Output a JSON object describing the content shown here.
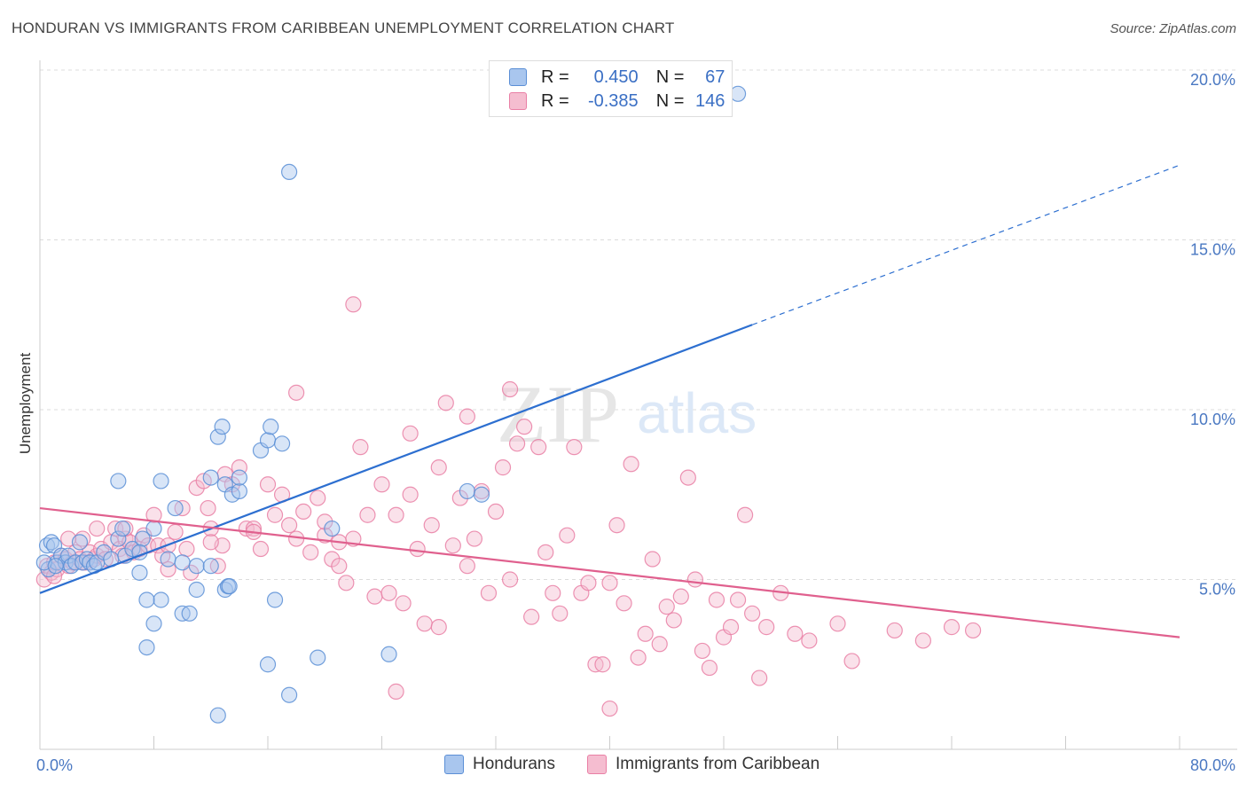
{
  "title": "HONDURAN VS IMMIGRANTS FROM CARIBBEAN UNEMPLOYMENT CORRELATION CHART",
  "source": "Source: ZipAtlas.com",
  "watermark": {
    "zip": "ZIP",
    "atlas": "atlas"
  },
  "colors": {
    "blue": "#5b8fd6",
    "blue_fill": "#a9c6ee",
    "blue_line": "#2d6fd0",
    "pink": "#e97fa5",
    "pink_fill": "#f5bdd0",
    "pink_line": "#e0608e",
    "tick": "#4a78c2",
    "grid": "#dcdcdc"
  },
  "legend": {
    "rows": [
      {
        "r_label": "R =",
        "r_value": "0.450",
        "n_label": "N =",
        "n_value": "67",
        "color": "blue"
      },
      {
        "r_label": "R =",
        "r_value": "-0.385",
        "n_label": "N =",
        "n_value": "146",
        "color": "pink"
      }
    ]
  },
  "bottom_legend": {
    "series1": "Hondurans",
    "series2": "Immigrants from Caribbean"
  },
  "chart_data": {
    "type": "scatter",
    "ylabel": "Unemployment",
    "xlim": [
      0,
      80
    ],
    "ylim": [
      0,
      20
    ],
    "x_tick_labels": [
      {
        "value": 0,
        "label": "0.0%"
      },
      {
        "value": 80,
        "label": "80.0%"
      }
    ],
    "y_tick_labels": [
      {
        "value": 5,
        "label": "5.0%"
      },
      {
        "value": 10,
        "label": "10.0%"
      },
      {
        "value": 15,
        "label": "15.0%"
      },
      {
        "value": 20,
        "label": "20.0%"
      }
    ],
    "series": [
      {
        "name": "Hondurans",
        "color": "blue",
        "trend": {
          "x0": 0,
          "y0": 4.6,
          "x1": 50,
          "y1": 12.5,
          "dash_to_x": 80,
          "dash_to_y": 17.2
        },
        "points": [
          [
            0.5,
            6.0
          ],
          [
            0.6,
            5.3
          ],
          [
            0.8,
            6.1
          ],
          [
            1.0,
            6.0
          ],
          [
            1.2,
            5.5
          ],
          [
            1.5,
            5.7
          ],
          [
            1.8,
            5.5
          ],
          [
            2.0,
            5.7
          ],
          [
            2.2,
            5.4
          ],
          [
            2.5,
            5.5
          ],
          [
            2.8,
            6.1
          ],
          [
            3.0,
            5.5
          ],
          [
            3.3,
            5.6
          ],
          [
            3.5,
            5.5
          ],
          [
            3.8,
            5.4
          ],
          [
            4.0,
            5.5
          ],
          [
            4.5,
            5.8
          ],
          [
            5.0,
            5.6
          ],
          [
            5.5,
            6.2
          ],
          [
            5.8,
            6.5
          ],
          [
            6.0,
            5.7
          ],
          [
            6.5,
            5.9
          ],
          [
            7.0,
            5.2
          ],
          [
            7.2,
            6.2
          ],
          [
            7.0,
            5.8
          ],
          [
            5.5,
            7.9
          ],
          [
            8.5,
            7.9
          ],
          [
            8.0,
            6.5
          ],
          [
            8.5,
            4.4
          ],
          [
            7.5,
            4.4
          ],
          [
            8.0,
            3.7
          ],
          [
            7.5,
            3.0
          ],
          [
            9.0,
            5.6
          ],
          [
            9.5,
            7.1
          ],
          [
            10.0,
            5.5
          ],
          [
            10.0,
            4.0
          ],
          [
            10.5,
            4.0
          ],
          [
            11.0,
            5.4
          ],
          [
            11.0,
            4.7
          ],
          [
            12.0,
            5.4
          ],
          [
            12.0,
            8.0
          ],
          [
            12.5,
            9.2
          ],
          [
            12.5,
            1.0
          ],
          [
            12.8,
            9.5
          ],
          [
            13.0,
            7.8
          ],
          [
            13.5,
            7.5
          ],
          [
            13.0,
            4.7
          ],
          [
            13.2,
            4.8
          ],
          [
            13.3,
            4.8
          ],
          [
            14.0,
            7.6
          ],
          [
            14.0,
            8.0
          ],
          [
            15.5,
            8.8
          ],
          [
            16.0,
            9.1
          ],
          [
            16.2,
            9.5
          ],
          [
            17.0,
            9.0
          ],
          [
            16.0,
            2.5
          ],
          [
            16.5,
            4.4
          ],
          [
            17.5,
            1.6
          ],
          [
            17.5,
            17.0
          ],
          [
            19.5,
            2.7
          ],
          [
            20.5,
            6.5
          ],
          [
            24.5,
            2.8
          ],
          [
            30.0,
            7.6
          ],
          [
            31.0,
            7.5
          ],
          [
            49.0,
            19.3
          ],
          [
            0.3,
            5.5
          ],
          [
            1.1,
            5.4
          ]
        ]
      },
      {
        "name": "Immigrants from Caribbean",
        "color": "pink",
        "trend": {
          "x0": 0,
          "y0": 7.1,
          "x1": 80,
          "y1": 3.3
        },
        "points": [
          [
            0.3,
            5.0
          ],
          [
            0.5,
            5.4
          ],
          [
            0.8,
            5.2
          ],
          [
            1.0,
            5.5
          ],
          [
            1.2,
            5.3
          ],
          [
            1.5,
            5.7
          ],
          [
            1.8,
            5.6
          ],
          [
            2.0,
            5.4
          ],
          [
            2.3,
            5.5
          ],
          [
            2.5,
            5.8
          ],
          [
            2.8,
            5.6
          ],
          [
            3.0,
            6.2
          ],
          [
            3.2,
            5.5
          ],
          [
            3.5,
            5.8
          ],
          [
            3.8,
            5.6
          ],
          [
            4.0,
            5.7
          ],
          [
            4.3,
            5.9
          ],
          [
            4.6,
            5.6
          ],
          [
            5.0,
            6.1
          ],
          [
            5.3,
            6.5
          ],
          [
            5.6,
            5.9
          ],
          [
            5.8,
            5.7
          ],
          [
            6.0,
            6.2
          ],
          [
            6.3,
            6.1
          ],
          [
            6.6,
            5.8
          ],
          [
            7.0,
            5.9
          ],
          [
            7.3,
            6.3
          ],
          [
            7.6,
            6.0
          ],
          [
            8.0,
            6.9
          ],
          [
            8.3,
            6.0
          ],
          [
            8.6,
            5.7
          ],
          [
            9.0,
            5.3
          ],
          [
            9.5,
            6.4
          ],
          [
            10.0,
            7.1
          ],
          [
            10.3,
            5.9
          ],
          [
            10.6,
            5.2
          ],
          [
            11.0,
            7.7
          ],
          [
            11.5,
            7.9
          ],
          [
            11.8,
            7.1
          ],
          [
            12.0,
            6.5
          ],
          [
            12.5,
            5.4
          ],
          [
            12.8,
            6.0
          ],
          [
            13.0,
            8.1
          ],
          [
            13.5,
            7.8
          ],
          [
            14.0,
            8.3
          ],
          [
            14.5,
            6.5
          ],
          [
            15.0,
            6.5
          ],
          [
            15.5,
            5.9
          ],
          [
            16.0,
            7.8
          ],
          [
            16.5,
            6.9
          ],
          [
            17.0,
            7.5
          ],
          [
            17.5,
            6.6
          ],
          [
            18.0,
            6.2
          ],
          [
            18.5,
            7.0
          ],
          [
            19.0,
            5.8
          ],
          [
            19.5,
            7.4
          ],
          [
            20.0,
            6.3
          ],
          [
            20.5,
            5.6
          ],
          [
            21.0,
            6.1
          ],
          [
            21.5,
            4.9
          ],
          [
            22.0,
            6.2
          ],
          [
            22.5,
            8.9
          ],
          [
            23.0,
            6.9
          ],
          [
            23.5,
            4.5
          ],
          [
            24.0,
            7.8
          ],
          [
            24.5,
            4.6
          ],
          [
            25.0,
            6.9
          ],
          [
            25.5,
            4.3
          ],
          [
            26.0,
            7.5
          ],
          [
            26.5,
            5.9
          ],
          [
            27.0,
            3.7
          ],
          [
            27.5,
            6.6
          ],
          [
            28.0,
            8.3
          ],
          [
            28.5,
            10.2
          ],
          [
            29.0,
            6.0
          ],
          [
            29.5,
            7.4
          ],
          [
            30.0,
            9.8
          ],
          [
            30.5,
            6.2
          ],
          [
            31.0,
            7.6
          ],
          [
            31.5,
            4.6
          ],
          [
            32.0,
            7.0
          ],
          [
            32.5,
            8.3
          ],
          [
            33.0,
            5.0
          ],
          [
            33.5,
            9.0
          ],
          [
            34.0,
            9.5
          ],
          [
            34.5,
            3.9
          ],
          [
            35.0,
            8.9
          ],
          [
            35.5,
            5.8
          ],
          [
            36.0,
            4.6
          ],
          [
            36.5,
            4.0
          ],
          [
            37.0,
            6.3
          ],
          [
            37.5,
            8.9
          ],
          [
            38.0,
            4.6
          ],
          [
            38.5,
            4.9
          ],
          [
            39.0,
            2.5
          ],
          [
            39.5,
            2.5
          ],
          [
            40.0,
            4.9
          ],
          [
            40.5,
            6.6
          ],
          [
            41.0,
            4.3
          ],
          [
            41.5,
            8.4
          ],
          [
            42.0,
            2.7
          ],
          [
            42.5,
            3.4
          ],
          [
            43.0,
            5.6
          ],
          [
            43.5,
            3.1
          ],
          [
            44.0,
            4.2
          ],
          [
            44.5,
            3.8
          ],
          [
            45.0,
            4.5
          ],
          [
            45.5,
            8.0
          ],
          [
            46.0,
            5.0
          ],
          [
            46.5,
            2.9
          ],
          [
            47.0,
            2.4
          ],
          [
            47.5,
            4.4
          ],
          [
            48.0,
            3.3
          ],
          [
            48.5,
            3.6
          ],
          [
            49.0,
            4.4
          ],
          [
            49.5,
            6.9
          ],
          [
            50.0,
            4.0
          ],
          [
            50.5,
            2.1
          ],
          [
            51.0,
            3.6
          ],
          [
            52.0,
            4.6
          ],
          [
            53.0,
            3.4
          ],
          [
            54.0,
            3.2
          ],
          [
            56.0,
            3.7
          ],
          [
            57.0,
            2.6
          ],
          [
            60.0,
            3.5
          ],
          [
            62.0,
            3.2
          ],
          [
            64.0,
            3.6
          ],
          [
            65.5,
            3.5
          ],
          [
            18.0,
            10.5
          ],
          [
            22.0,
            13.1
          ],
          [
            33.0,
            10.6
          ],
          [
            28.0,
            3.6
          ],
          [
            25.0,
            1.7
          ],
          [
            40.0,
            1.2
          ],
          [
            21.0,
            5.4
          ],
          [
            20.0,
            6.7
          ],
          [
            15.0,
            6.4
          ],
          [
            12.0,
            6.1
          ],
          [
            9.0,
            6.0
          ],
          [
            6.0,
            6.5
          ],
          [
            4.0,
            6.5
          ],
          [
            3.0,
            5.5
          ],
          [
            2.0,
            6.2
          ],
          [
            1.0,
            5.1
          ],
          [
            30.0,
            5.4
          ],
          [
            26.0,
            9.3
          ]
        ]
      }
    ]
  }
}
